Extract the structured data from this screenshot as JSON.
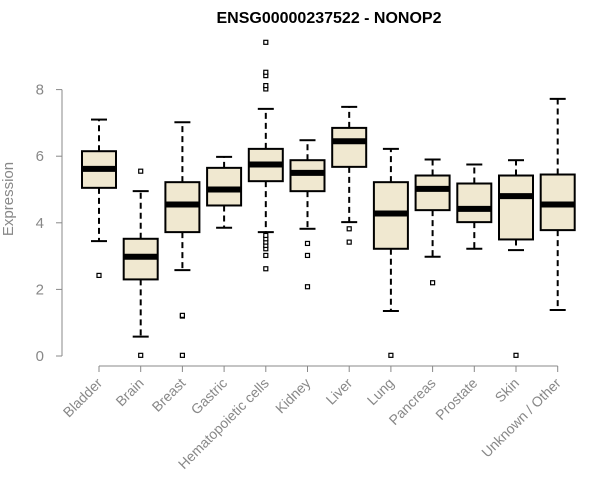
{
  "chart_data": {
    "type": "boxplot",
    "title": "ENSG00000237522 - NONOP2",
    "ylabel": "Expression",
    "ylim": [
      0,
      9.5
    ],
    "yticks": [
      0,
      2,
      4,
      6,
      8
    ],
    "grid": false,
    "colors": {
      "box_fill": "#f0e8d0",
      "stroke": "#000000",
      "axis": "#888888"
    },
    "categories": [
      "Bladder",
      "Brain",
      "Breast",
      "Gastric",
      "Hematopoietic cells",
      "Kidney",
      "Liver",
      "Lung",
      "Pancreas",
      "Prostate",
      "Skin",
      "Unknown / Other"
    ],
    "boxes": [
      {
        "whisker_low": 3.45,
        "q1": 5.05,
        "median": 5.62,
        "q3": 6.15,
        "whisker_high": 7.1,
        "outliers": [
          2.42
        ]
      },
      {
        "whisker_low": 0.58,
        "q1": 2.3,
        "median": 2.98,
        "q3": 3.52,
        "whisker_high": 4.95,
        "outliers": [
          0.02,
          5.55
        ]
      },
      {
        "whisker_low": 2.58,
        "q1": 3.72,
        "median": 4.55,
        "q3": 5.22,
        "whisker_high": 7.02,
        "outliers": [
          0.02,
          1.2,
          1.22
        ]
      },
      {
        "whisker_low": 3.85,
        "q1": 4.52,
        "median": 5.0,
        "q3": 5.65,
        "whisker_high": 5.98,
        "outliers": []
      },
      {
        "whisker_low": 3.72,
        "q1": 5.25,
        "median": 5.75,
        "q3": 6.22,
        "whisker_high": 7.42,
        "outliers": [
          2.62,
          3.02,
          3.22,
          3.32,
          3.42,
          3.52,
          3.62,
          8.02,
          8.12,
          8.42,
          8.52,
          9.42
        ]
      },
      {
        "whisker_low": 3.82,
        "q1": 4.95,
        "median": 5.5,
        "q3": 5.88,
        "whisker_high": 6.48,
        "outliers": [
          2.08,
          3.02,
          3.38
        ]
      },
      {
        "whisker_low": 4.02,
        "q1": 5.68,
        "median": 6.45,
        "q3": 6.85,
        "whisker_high": 7.48,
        "outliers": [
          3.42,
          3.82
        ]
      },
      {
        "whisker_low": 1.35,
        "q1": 3.22,
        "median": 4.28,
        "q3": 5.22,
        "whisker_high": 6.22,
        "outliers": [
          0.02
        ]
      },
      {
        "whisker_low": 2.98,
        "q1": 4.38,
        "median": 5.02,
        "q3": 5.42,
        "whisker_high": 5.9,
        "outliers": [
          2.2
        ]
      },
      {
        "whisker_low": 3.22,
        "q1": 4.02,
        "median": 4.42,
        "q3": 5.18,
        "whisker_high": 5.75,
        "outliers": []
      },
      {
        "whisker_low": 3.18,
        "q1": 3.5,
        "median": 4.8,
        "q3": 5.42,
        "whisker_high": 5.88,
        "outliers": [
          0.02
        ]
      },
      {
        "whisker_low": 1.38,
        "q1": 3.78,
        "median": 4.55,
        "q3": 5.45,
        "whisker_high": 7.72,
        "outliers": []
      }
    ]
  }
}
